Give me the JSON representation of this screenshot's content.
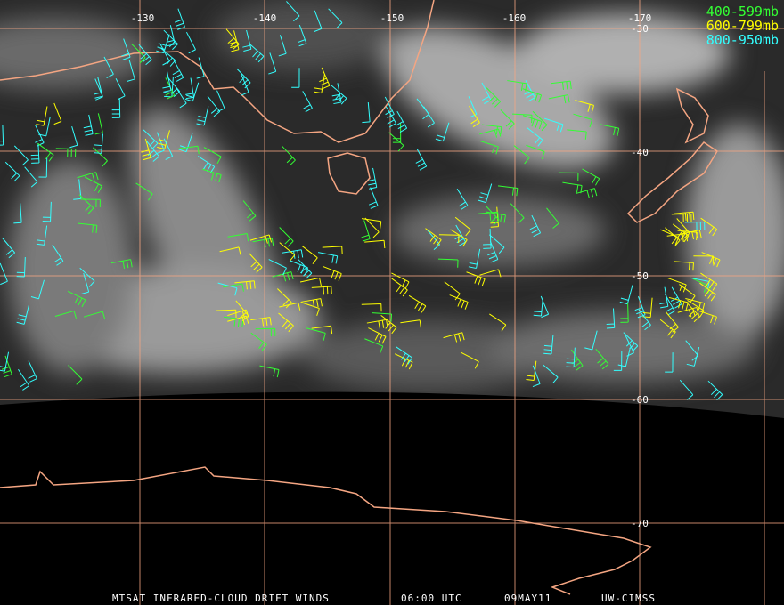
{
  "map": {
    "longitude_labels": [
      "-130",
      "-140",
      "-150",
      "-160",
      "-170"
    ],
    "latitude_labels": [
      "-30",
      "-40",
      "-50",
      "-60",
      "-70"
    ],
    "legend": [
      {
        "label": "400-599mb",
        "color": "#33ff33"
      },
      {
        "label": "600-799mb",
        "color": "#ffff00"
      },
      {
        "label": "800-950mb",
        "color": "#33ffff"
      }
    ],
    "footer": {
      "product": "MTSAT INFRARED-CLOUD DRIFT WINDS",
      "time": "06:00 UTC",
      "date": "09MAY11",
      "source": "UW-CIMSS"
    }
  }
}
